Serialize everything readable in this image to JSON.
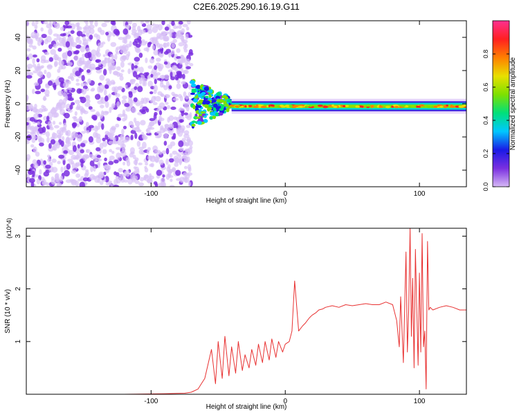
{
  "title": "C2E6.2025.290.16.19.G11",
  "colors": {
    "snr_line": "#e83030",
    "spectrogram_scatter": "#7b2fe0",
    "colorbar_stops": [
      "#d6b8f5",
      "#7a2fe0",
      "#1a1ae6",
      "#00c8ff",
      "#00e07a",
      "#7ee000",
      "#e8e000",
      "#ff8000",
      "#ff2020",
      "#ff3090"
    ]
  },
  "chart_data": [
    {
      "type": "heatmap",
      "name": "spectrogram",
      "xlabel": "Height of straight line (km)",
      "ylabel": "Frequency (Hz)",
      "xlim": [
        -193,
        135
      ],
      "ylim": [
        -50,
        50
      ],
      "x_ticks": [
        -100,
        0,
        100
      ],
      "y_ticks": [
        -40,
        -20,
        0,
        20,
        40
      ],
      "grid": false,
      "description_regions": [
        {
          "x_range": [
            -193,
            -70
          ],
          "freq_range": [
            -50,
            50
          ],
          "level": 0.15,
          "pattern": "scattered noise"
        },
        {
          "x_range": [
            -70,
            -40
          ],
          "freq_range": [
            -15,
            15
          ],
          "level": 0.5,
          "pattern": "broadening onset"
        },
        {
          "x_range": [
            -40,
            135
          ],
          "freq_range": [
            -4,
            2
          ],
          "level": 0.9,
          "pattern": "narrow line near 0 Hz"
        }
      ],
      "colorbar": {
        "label": "Normalized spectral amplitude",
        "range": [
          0.0,
          1.0
        ],
        "ticks": [
          "0.0",
          "0.2",
          "0.4",
          "0.6",
          "0.8"
        ]
      }
    },
    {
      "type": "line",
      "name": "snr",
      "xlabel": "Height of straight line (km)",
      "ylabel": "SNR (10 * v/v)",
      "y_scale_note": "(x10^4)",
      "xlim": [
        -193,
        135
      ],
      "ylim": [
        0,
        3.15
      ],
      "x_ticks": [
        -100,
        0,
        100
      ],
      "y_ticks": [
        1,
        2,
        3
      ],
      "grid": false,
      "x": [
        -193,
        -160,
        -120,
        -90,
        -75,
        -70,
        -65,
        -60,
        -55,
        -52,
        -50,
        -47,
        -45,
        -42,
        -40,
        -37,
        -35,
        -32,
        -30,
        -27,
        -25,
        -22,
        -20,
        -17,
        -15,
        -12,
        -10,
        -7,
        -5,
        -2,
        0,
        3,
        5,
        7,
        10,
        13,
        15,
        18,
        20,
        23,
        25,
        28,
        30,
        35,
        40,
        45,
        50,
        55,
        60,
        65,
        70,
        75,
        80,
        83,
        85,
        86,
        88,
        90,
        91,
        92,
        93,
        94,
        95,
        96,
        97,
        98,
        99,
        100,
        101,
        102,
        103,
        104,
        105,
        106,
        107,
        108,
        110,
        115,
        120,
        125,
        130,
        135
      ],
      "values": [
        0.0,
        0.0,
        0.0,
        0.01,
        0.02,
        0.04,
        0.1,
        0.3,
        0.85,
        0.2,
        1.0,
        0.3,
        1.1,
        0.35,
        0.9,
        0.4,
        1.0,
        0.45,
        0.75,
        0.5,
        0.85,
        0.55,
        0.95,
        0.6,
        1.0,
        0.65,
        1.05,
        0.7,
        1.0,
        0.8,
        0.95,
        1.0,
        1.2,
        2.15,
        1.2,
        1.3,
        1.35,
        1.45,
        1.5,
        1.55,
        1.6,
        1.62,
        1.65,
        1.68,
        1.65,
        1.7,
        1.68,
        1.7,
        1.72,
        1.7,
        1.7,
        1.75,
        1.7,
        1.4,
        0.9,
        1.85,
        0.6,
        2.7,
        0.8,
        1.6,
        3.15,
        1.1,
        2.2,
        0.5,
        2.75,
        1.6,
        0.55,
        2.3,
        0.8,
        3.05,
        0.9,
        1.2,
        0.1,
        2.9,
        1.6,
        1.65,
        1.6,
        1.65,
        1.68,
        1.65,
        1.6,
        1.6
      ]
    }
  ]
}
